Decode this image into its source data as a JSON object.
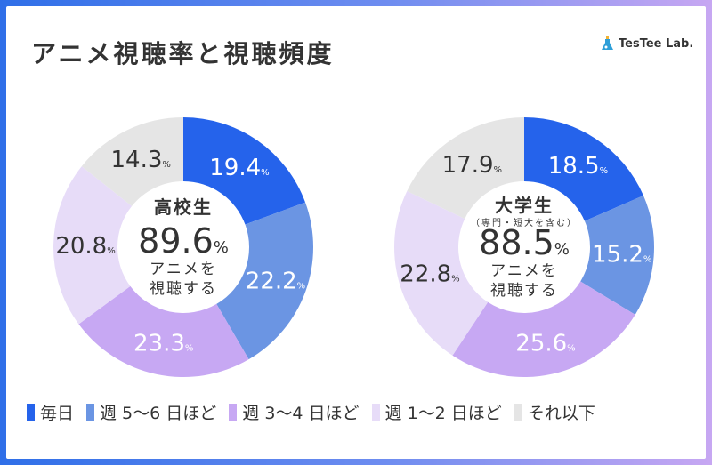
{
  "header": {
    "title": "アニメ視聴率と視聴頻度",
    "brand": "TesTee Lab."
  },
  "legend": [
    {
      "label": "毎日",
      "color": "#2563eb"
    },
    {
      "label": "週 5〜6 日ほど",
      "color": "#6b95e3"
    },
    {
      "label": "週 3〜4 日ほど",
      "color": "#c7a8f3"
    },
    {
      "label": "週 1〜2 日ほど",
      "color": "#e7dcf8"
    },
    {
      "label": "それ以下",
      "color": "#e5e5e5"
    }
  ],
  "chart_data": [
    {
      "type": "donut",
      "categories": [
        "毎日",
        "週 5〜6 日ほど",
        "週 3〜4 日ほど",
        "週 1〜2 日ほど",
        "それ以下"
      ],
      "values": [
        19.4,
        22.2,
        23.3,
        20.8,
        14.3
      ],
      "unit": "%",
      "center": {
        "group": "高校生",
        "rate": "89.6",
        "rate_unit": "%",
        "caption_line1": "アニメを",
        "caption_line2": "視聴する"
      }
    },
    {
      "type": "donut",
      "categories": [
        "毎日",
        "週 5〜6 日ほど",
        "週 3〜4 日ほど",
        "週 1〜2 日ほど",
        "それ以下"
      ],
      "values": [
        18.5,
        15.2,
        25.6,
        22.8,
        17.9
      ],
      "unit": "%",
      "center": {
        "group": "大学生",
        "subgroup": "（専門・短大を含む）",
        "rate": "88.5",
        "rate_unit": "%",
        "caption_line1": "アニメを",
        "caption_line2": "視聴する"
      }
    }
  ]
}
